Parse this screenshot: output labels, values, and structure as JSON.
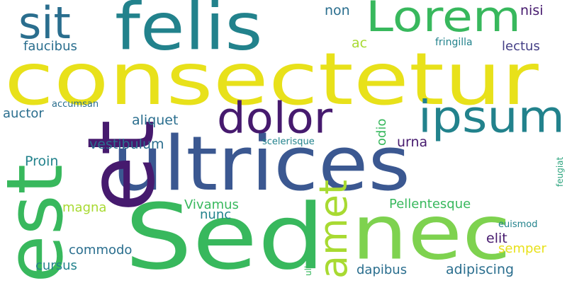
{
  "colors": {
    "background": "#ffffff",
    "yellow": "#e8e11a",
    "green": "#38b85d",
    "lime": "#7ed24f",
    "limeLight": "#a8da32",
    "teal": "#22828c",
    "tealDark": "#2a6e8e",
    "blue": "#3b5891",
    "indigo": "#433e85",
    "purple": "#461a6e",
    "sea": "#2ea57f"
  },
  "words": [
    {
      "text": "consectetur",
      "color": "yellow"
    },
    {
      "text": "ultrices",
      "color": "blue"
    },
    {
      "text": "Sed",
      "color": "green"
    },
    {
      "text": "felis",
      "color": "teal"
    },
    {
      "text": "et",
      "color": "purple"
    },
    {
      "text": "est",
      "color": "green"
    },
    {
      "text": "nec",
      "color": "lime"
    },
    {
      "text": "Lorem",
      "color": "green"
    },
    {
      "text": "sit",
      "color": "tealDark"
    },
    {
      "text": "dolor",
      "color": "purple"
    },
    {
      "text": "ipsum",
      "color": "teal"
    },
    {
      "text": "amet",
      "color": "limeLight"
    },
    {
      "text": "non",
      "color": "tealDark"
    },
    {
      "text": "nisi",
      "color": "purple"
    },
    {
      "text": "faucibus",
      "color": "tealDark"
    },
    {
      "text": "ac",
      "color": "limeLight"
    },
    {
      "text": "fringilla",
      "color": "teal"
    },
    {
      "text": "lectus",
      "color": "indigo"
    },
    {
      "text": "accumsan",
      "color": "tealDark"
    },
    {
      "text": "auctor",
      "color": "tealDark"
    },
    {
      "text": "aliquet",
      "color": "tealDark"
    },
    {
      "text": "odio",
      "color": "green"
    },
    {
      "text": "vestibulum",
      "color": "tealDark"
    },
    {
      "text": "scelerisque",
      "color": "teal"
    },
    {
      "text": "urna",
      "color": "purple"
    },
    {
      "text": "Proin",
      "color": "teal"
    },
    {
      "text": "feugiat",
      "color": "sea"
    },
    {
      "text": "magna",
      "color": "limeLight"
    },
    {
      "text": "Vivamus",
      "color": "green"
    },
    {
      "text": "nunc",
      "color": "teal"
    },
    {
      "text": "Pellentesque",
      "color": "green"
    },
    {
      "text": "euismod",
      "color": "teal"
    },
    {
      "text": "elit",
      "color": "purple"
    },
    {
      "text": "commodo",
      "color": "tealDark"
    },
    {
      "text": "ullamcorper",
      "color": "green"
    },
    {
      "text": "semper",
      "color": "yellow"
    },
    {
      "text": "cursus",
      "color": "teal"
    },
    {
      "text": "dapibus",
      "color": "tealDark"
    },
    {
      "text": "adipiscing",
      "color": "tealDark"
    }
  ]
}
